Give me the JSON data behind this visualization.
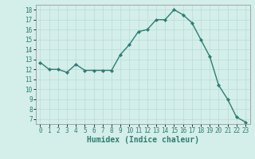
{
  "x": [
    0,
    1,
    2,
    3,
    4,
    5,
    6,
    7,
    8,
    9,
    10,
    11,
    12,
    13,
    14,
    15,
    16,
    17,
    18,
    19,
    20,
    21,
    22,
    23
  ],
  "y": [
    12.7,
    12.0,
    12.0,
    11.7,
    12.5,
    11.9,
    11.9,
    11.9,
    11.9,
    13.5,
    14.5,
    15.8,
    16.0,
    17.0,
    17.0,
    18.0,
    17.5,
    16.7,
    15.0,
    13.3,
    10.4,
    9.0,
    7.2,
    6.7
  ],
  "line_color": "#2e7d72",
  "marker": "D",
  "marker_size": 2.0,
  "bg_color": "#d4eeea",
  "grid_color": "#b8dcd8",
  "xlabel": "Humidex (Indice chaleur)",
  "xlim": [
    -0.5,
    23.5
  ],
  "ylim": [
    6.5,
    18.5
  ],
  "yticks": [
    7,
    8,
    9,
    10,
    11,
    12,
    13,
    14,
    15,
    16,
    17,
    18
  ],
  "xticks": [
    0,
    1,
    2,
    3,
    4,
    5,
    6,
    7,
    8,
    9,
    10,
    11,
    12,
    13,
    14,
    15,
    16,
    17,
    18,
    19,
    20,
    21,
    22,
    23
  ],
  "tick_fontsize": 5.5,
  "label_fontsize": 7,
  "linewidth": 1.0
}
